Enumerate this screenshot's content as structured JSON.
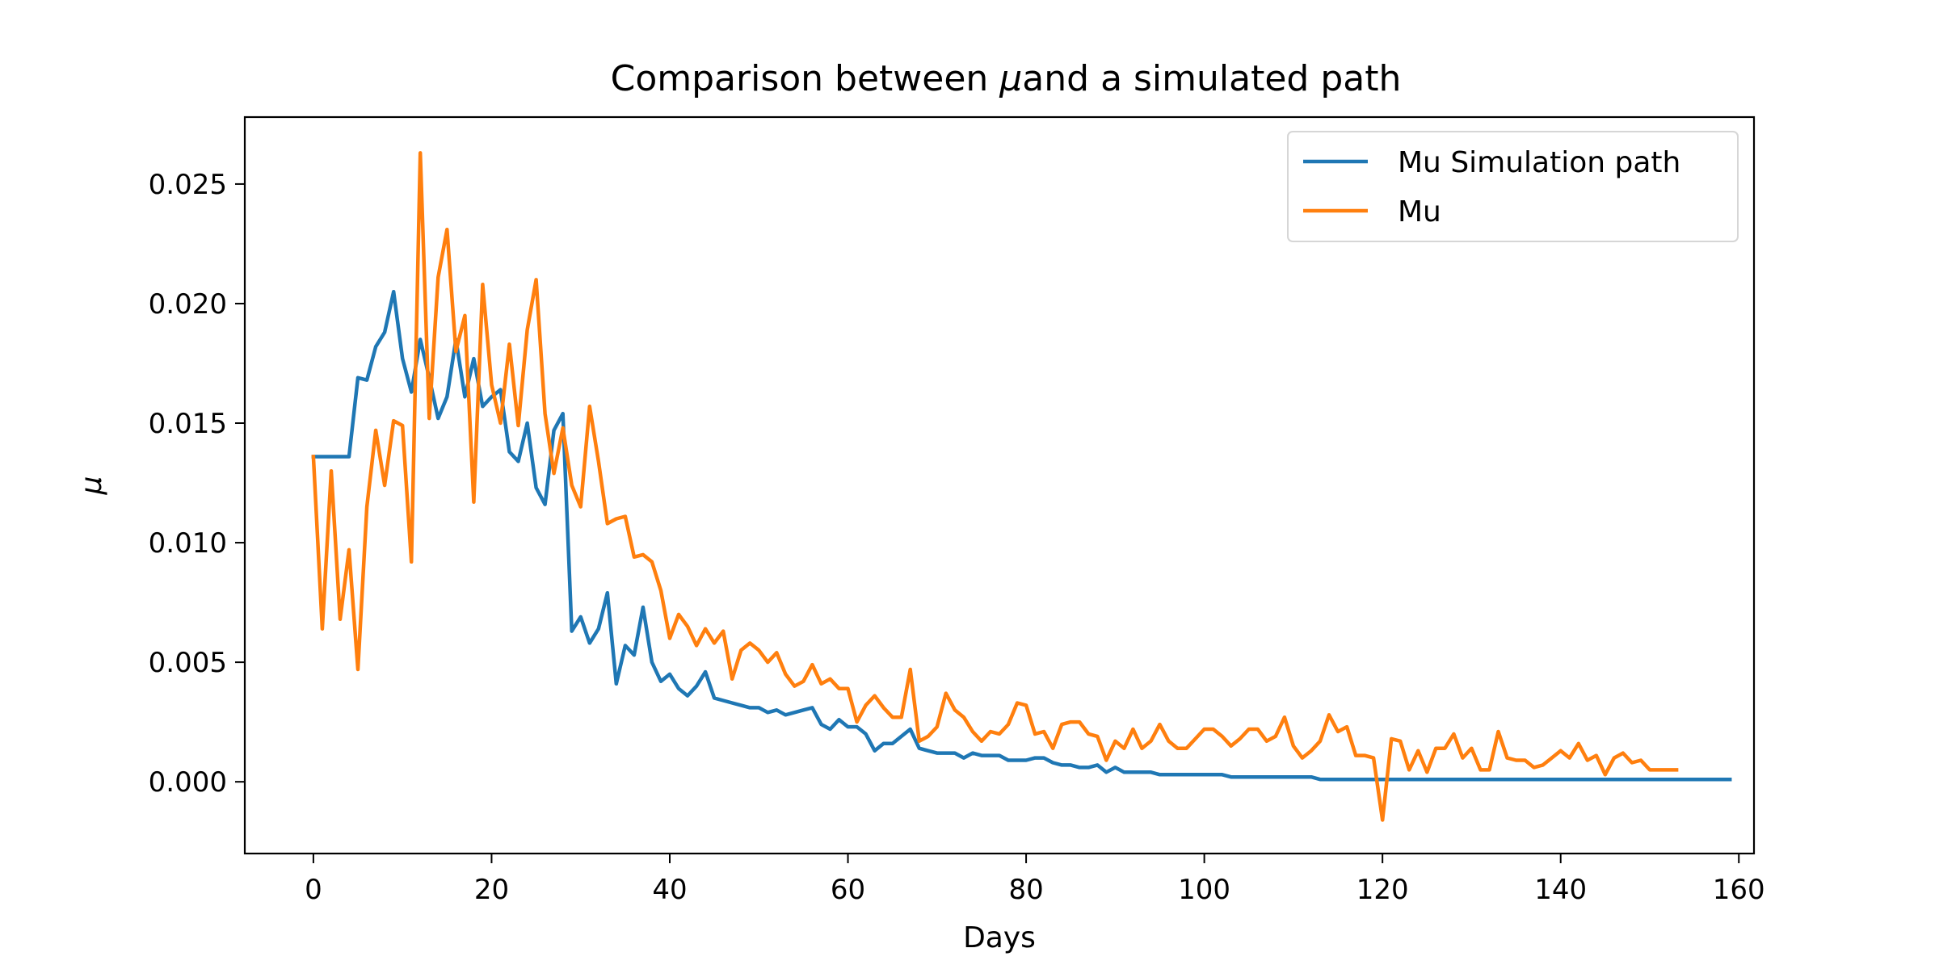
{
  "chart_data": {
    "type": "line",
    "title_prefix": "Comparison between ",
    "title_mu": "μ",
    "title_suffix": "and a simulated path",
    "xlabel": "Days",
    "ylabel": "μ",
    "xlim": [
      -7.7,
      161.7
    ],
    "ylim": [
      -0.003,
      0.0278
    ],
    "xticks": [
      0,
      20,
      40,
      60,
      80,
      100,
      120,
      140,
      160
    ],
    "xtick_labels": [
      "0",
      "20",
      "40",
      "60",
      "80",
      "100",
      "120",
      "140",
      "160"
    ],
    "yticks": [
      0.0,
      0.005,
      0.01,
      0.015,
      0.02,
      0.025
    ],
    "ytick_labels": [
      "0.000",
      "0.005",
      "0.010",
      "0.015",
      "0.020",
      "0.025"
    ],
    "legend_position": "upper right",
    "series": [
      {
        "name": "Mu Simulation path",
        "color": "#1f77b4",
        "x_start": 0,
        "values": [
          0.0136,
          0.0136,
          0.0136,
          0.0136,
          0.0136,
          0.0169,
          0.0168,
          0.0182,
          0.0188,
          0.0205,
          0.0177,
          0.0163,
          0.0185,
          0.0169,
          0.0152,
          0.0161,
          0.0185,
          0.0161,
          0.0177,
          0.0157,
          0.0161,
          0.0164,
          0.0138,
          0.0134,
          0.015,
          0.0123,
          0.0116,
          0.0147,
          0.0154,
          0.0063,
          0.0069,
          0.0058,
          0.0064,
          0.0079,
          0.0041,
          0.0057,
          0.0053,
          0.0073,
          0.005,
          0.0042,
          0.0045,
          0.0039,
          0.0036,
          0.004,
          0.0046,
          0.0035,
          0.0034,
          0.0033,
          0.0032,
          0.0031,
          0.0031,
          0.0029,
          0.003,
          0.0028,
          0.0029,
          0.003,
          0.0031,
          0.0024,
          0.0022,
          0.0026,
          0.0023,
          0.0023,
          0.002,
          0.0013,
          0.0016,
          0.0016,
          0.0019,
          0.0022,
          0.0014,
          0.0013,
          0.0012,
          0.0012,
          0.0012,
          0.001,
          0.0012,
          0.0011,
          0.0011,
          0.0011,
          0.0009,
          0.0009,
          0.0009,
          0.001,
          0.001,
          0.0008,
          0.0007,
          0.0007,
          0.0006,
          0.0006,
          0.0007,
          0.0004,
          0.0006,
          0.0004,
          0.0004,
          0.0004,
          0.0004,
          0.0003,
          0.0003,
          0.0003,
          0.0003,
          0.0003,
          0.0003,
          0.0003,
          0.0003,
          0.0002,
          0.0002,
          0.0002,
          0.0002,
          0.0002,
          0.0002,
          0.0002,
          0.0002,
          0.0002,
          0.0002,
          0.0001,
          0.0001,
          0.0001,
          0.0001,
          0.0001,
          0.0001,
          0.0001,
          0.0001,
          0.0001,
          0.0001,
          0.0001,
          0.0001,
          0.0001,
          0.0001,
          0.0001,
          0.0001,
          0.0001,
          0.0001,
          0.0001,
          0.0001,
          0.0001,
          0.0001,
          0.0001,
          0.0001,
          0.0001,
          0.0001,
          0.0001,
          0.0001,
          0.0001,
          0.0001,
          0.0001,
          0.0001,
          0.0001,
          0.0001,
          0.0001,
          0.0001,
          0.0001,
          0.0001,
          0.0001,
          0.0001,
          0.0001,
          0.0001,
          0.0001,
          0.0001,
          0.0001,
          0.0001,
          0.0001
        ]
      },
      {
        "name": "Mu",
        "color": "#ff7f0e",
        "x_start": 0,
        "values": [
          0.0136,
          0.0064,
          0.013,
          0.0068,
          0.0097,
          0.0047,
          0.0115,
          0.0147,
          0.0124,
          0.0151,
          0.0149,
          0.0092,
          0.0263,
          0.0152,
          0.0211,
          0.0231,
          0.018,
          0.0195,
          0.0117,
          0.0208,
          0.0166,
          0.015,
          0.0183,
          0.0149,
          0.0189,
          0.021,
          0.0154,
          0.0129,
          0.0148,
          0.0124,
          0.0115,
          0.0157,
          0.0134,
          0.0108,
          0.011,
          0.0111,
          0.0094,
          0.0095,
          0.0092,
          0.008,
          0.006,
          0.007,
          0.0065,
          0.0057,
          0.0064,
          0.0058,
          0.0063,
          0.0043,
          0.0055,
          0.0058,
          0.0055,
          0.005,
          0.0054,
          0.0045,
          0.004,
          0.0042,
          0.0049,
          0.0041,
          0.0043,
          0.0039,
          0.0039,
          0.0025,
          0.0032,
          0.0036,
          0.0031,
          0.0027,
          0.0027,
          0.0047,
          0.0017,
          0.0019,
          0.0023,
          0.0037,
          0.003,
          0.0027,
          0.0021,
          0.0017,
          0.0021,
          0.002,
          0.0024,
          0.0033,
          0.0032,
          0.002,
          0.0021,
          0.0014,
          0.0024,
          0.0025,
          0.0025,
          0.002,
          0.0019,
          0.0009,
          0.0017,
          0.0014,
          0.0022,
          0.0014,
          0.0017,
          0.0024,
          0.0017,
          0.0014,
          0.0014,
          0.0018,
          0.0022,
          0.0022,
          0.0019,
          0.0015,
          0.0018,
          0.0022,
          0.0022,
          0.0017,
          0.0019,
          0.0027,
          0.0015,
          0.001,
          0.0013,
          0.0017,
          0.0028,
          0.0021,
          0.0023,
          0.0011,
          0.0011,
          0.001,
          -0.0016,
          0.0018,
          0.0017,
          0.0005,
          0.0013,
          0.0004,
          0.0014,
          0.0014,
          0.002,
          0.001,
          0.0014,
          0.0005,
          0.0005,
          0.0021,
          0.001,
          0.0009,
          0.0009,
          0.0006,
          0.0007,
          0.001,
          0.0013,
          0.001,
          0.0016,
          0.0009,
          0.0011,
          0.0003,
          0.001,
          0.0012,
          0.0008,
          0.0009,
          0.0005,
          0.0005,
          0.0005,
          0.0005
        ]
      }
    ]
  }
}
